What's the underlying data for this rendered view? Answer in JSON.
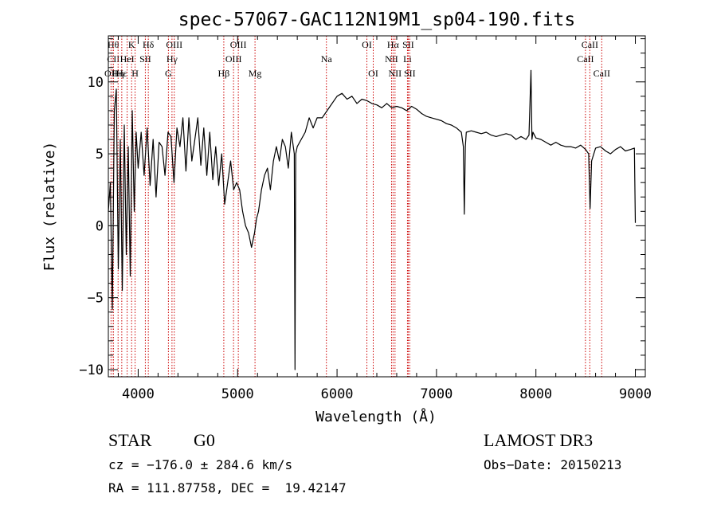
{
  "chart_data": {
    "type": "line",
    "title": "spec-57067-GAC112N19M1_sp04-190.fits",
    "xlabel": "Wavelength (Å)",
    "ylabel": "Flux (relative)",
    "xlim": [
      3700,
      9100
    ],
    "ylim": [
      -10.5,
      13.2
    ],
    "x_ticks": [
      4000,
      5000,
      6000,
      7000,
      8000,
      9000
    ],
    "y_ticks": [
      -10,
      -5,
      0,
      5,
      10
    ],
    "grid": false,
    "line_color": "#000000",
    "marker_color": "#cc0000",
    "series": [
      {
        "x": [
          3700,
          3720,
          3740,
          3760,
          3780,
          3800,
          3820,
          3840,
          3860,
          3880,
          3900,
          3920,
          3940,
          3960,
          3980,
          4000,
          4030,
          4060,
          4090,
          4120,
          4150,
          4180,
          4210,
          4240,
          4270,
          4300,
          4330,
          4360,
          4390,
          4420,
          4450,
          4480,
          4510,
          4540,
          4570,
          4600,
          4630,
          4660,
          4690,
          4720,
          4750,
          4780,
          4810,
          4840,
          4870,
          4900,
          4930,
          4960,
          4990,
          5020,
          5050,
          5080,
          5110,
          5140,
          5170,
          5190,
          5210,
          5240,
          5270,
          5300,
          5330,
          5360,
          5390,
          5420,
          5450,
          5480,
          5510,
          5540,
          5570,
          5577,
          5584,
          5600,
          5640,
          5680,
          5720,
          5760,
          5800,
          5850,
          5900,
          5950,
          6000,
          6050,
          6100,
          6150,
          6200,
          6250,
          6300,
          6350,
          6400,
          6450,
          6500,
          6550,
          6600,
          6650,
          6700,
          6750,
          6800,
          6850,
          6900,
          6950,
          7000,
          7050,
          7100,
          7150,
          7200,
          7250,
          7270,
          7280,
          7290,
          7300,
          7350,
          7400,
          7450,
          7500,
          7550,
          7600,
          7650,
          7700,
          7750,
          7800,
          7850,
          7900,
          7930,
          7950,
          7960,
          7970,
          8000,
          8050,
          8100,
          8150,
          8200,
          8250,
          8300,
          8350,
          8400,
          8450,
          8500,
          8530,
          8545,
          8560,
          8600,
          8650,
          8700,
          8750,
          8800,
          8850,
          8900,
          8950,
          8990,
          9000
        ],
        "y": [
          1.0,
          3.0,
          -5.8,
          8.0,
          9.5,
          -3.0,
          6.0,
          -4.5,
          7.0,
          -2.0,
          5.5,
          -3.5,
          8.0,
          1.0,
          6.5,
          4.0,
          6.5,
          3.5,
          6.8,
          2.8,
          6.0,
          2.0,
          5.8,
          5.5,
          3.5,
          6.5,
          6.2,
          3.0,
          6.8,
          5.5,
          7.5,
          3.8,
          7.5,
          4.5,
          6.0,
          7.5,
          4.2,
          6.8,
          3.5,
          6.5,
          3.2,
          5.5,
          2.8,
          5.0,
          1.5,
          3.0,
          4.5,
          2.5,
          3.0,
          2.5,
          1.0,
          0.0,
          -0.5,
          -1.5,
          -0.5,
          0.5,
          1.0,
          2.5,
          3.5,
          4.0,
          2.5,
          4.5,
          5.5,
          4.5,
          6.0,
          5.5,
          4.0,
          6.5,
          5.0,
          -10.0,
          5.0,
          5.5,
          6.0,
          6.5,
          7.5,
          6.8,
          7.5,
          7.5,
          8.0,
          8.5,
          9.0,
          9.2,
          8.8,
          9.0,
          8.5,
          8.8,
          8.7,
          8.5,
          8.4,
          8.2,
          8.5,
          8.2,
          8.3,
          8.2,
          8.0,
          8.3,
          8.1,
          7.8,
          7.6,
          7.5,
          7.4,
          7.3,
          7.1,
          7.0,
          6.8,
          6.5,
          5.5,
          0.8,
          5.5,
          6.5,
          6.6,
          6.5,
          6.4,
          6.5,
          6.3,
          6.2,
          6.3,
          6.4,
          6.3,
          6.0,
          6.2,
          6.0,
          6.3,
          10.8,
          6.0,
          6.5,
          6.1,
          6.0,
          5.8,
          5.6,
          5.8,
          5.6,
          5.5,
          5.5,
          5.4,
          5.6,
          5.3,
          5.0,
          1.2,
          4.5,
          5.4,
          5.5,
          5.2,
          5.0,
          5.3,
          5.5,
          5.2,
          5.3,
          5.4,
          0.2
        ]
      }
    ],
    "line_markers": [
      {
        "wavelength": 3727,
        "label": "OII",
        "row": 3
      },
      {
        "wavelength": 3750,
        "label": "Hθ",
        "row": 1
      },
      {
        "wavelength": 3750,
        "label": "CII",
        "row": 2
      },
      {
        "wavelength": 3798,
        "label": "Hη",
        "row": 3
      },
      {
        "wavelength": 3835,
        "label": "Hε",
        "row": 3
      },
      {
        "wavelength": 3889,
        "label": "HeI",
        "row": 2
      },
      {
        "wavelength": 3934,
        "label": "K",
        "row": 1
      },
      {
        "wavelength": 3969,
        "label": "H",
        "row": 3
      },
      {
        "wavelength": 4072,
        "label": "SII",
        "row": 2
      },
      {
        "wavelength": 4102,
        "label": "Hδ",
        "row": 1
      },
      {
        "wavelength": 4304,
        "label": "G",
        "row": 3
      },
      {
        "wavelength": 4340,
        "label": "Hγ",
        "row": 2
      },
      {
        "wavelength": 4363,
        "label": "OIII",
        "row": 1
      },
      {
        "wavelength": 4861,
        "label": "Hβ",
        "row": 3
      },
      {
        "wavelength": 4959,
        "label": "OIII",
        "row": 2
      },
      {
        "wavelength": 5007,
        "label": "OIII",
        "row": 1
      },
      {
        "wavelength": 5175,
        "label": "Mg",
        "row": 3
      },
      {
        "wavelength": 5893,
        "label": "Na",
        "row": 2
      },
      {
        "wavelength": 6300,
        "label": "OI",
        "row": 1
      },
      {
        "wavelength": 6364,
        "label": "OI",
        "row": 3
      },
      {
        "wavelength": 6548,
        "label": "NII",
        "row": 2
      },
      {
        "wavelength": 6563,
        "label": "Hα",
        "row": 1
      },
      {
        "wavelength": 6583,
        "label": "NII",
        "row": 3
      },
      {
        "wavelength": 6708,
        "label": "Li",
        "row": 2
      },
      {
        "wavelength": 6716,
        "label": "SII",
        "row": 1
      },
      {
        "wavelength": 6731,
        "label": "SII",
        "row": 3
      },
      {
        "wavelength": 8498,
        "label": "CaII",
        "row": 2
      },
      {
        "wavelength": 8542,
        "label": "CaII",
        "row": 1
      },
      {
        "wavelength": 8662,
        "label": "CaII",
        "row": 3
      }
    ]
  },
  "info": {
    "object_class": "STAR",
    "subclass": "G0",
    "survey": "LAMOST DR3",
    "redshift_text": "cz = −176.0 ± 284.6 km/s",
    "obs_date_text": "Obs−Date: 20150213",
    "coords_text": "RA = 111.87758, DEC =  19.42147"
  }
}
